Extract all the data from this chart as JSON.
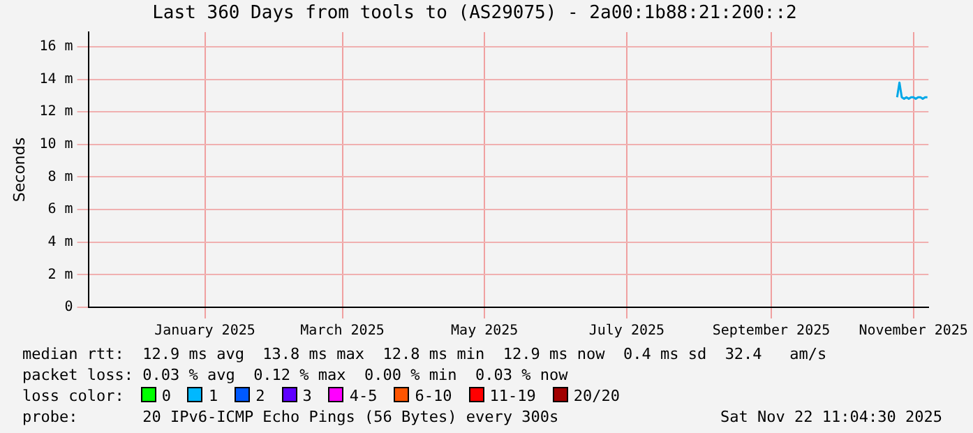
{
  "chart_data": {
    "type": "line",
    "title": "Last 360 Days from tools to (AS29075) - 2a00:1b88:21:200::2",
    "ylabel": "Seconds",
    "x": [
      "2025-11-09",
      "2025-11-10",
      "2025-11-11",
      "2025-11-12",
      "2025-11-13",
      "2025-11-14",
      "2025-11-15",
      "2025-11-16",
      "2025-11-17",
      "2025-11-18",
      "2025-11-19",
      "2025-11-20",
      "2025-11-21",
      "2025-11-22"
    ],
    "series": [
      {
        "color": "#00a8e8",
        "values": [
          12.9,
          13.8,
          12.9,
          12.8,
          12.9,
          12.8,
          12.9,
          12.9,
          12.8,
          12.9,
          12.9,
          12.8,
          12.9,
          12.9
        ]
      }
    ],
    "xlim": [
      "2024-11-27",
      "2025-11-22T11:04"
    ],
    "xticks": [
      {
        "value": "2025-01-16",
        "label": "January 2025"
      },
      {
        "value": "2025-03-16",
        "label": "March 2025"
      },
      {
        "value": "2025-05-16",
        "label": "May 2025"
      },
      {
        "value": "2025-07-16",
        "label": "July 2025"
      },
      {
        "value": "2025-09-16",
        "label": "September 2025"
      },
      {
        "value": "2025-11-16",
        "label": "November 2025"
      }
    ],
    "ylim": [
      0,
      16.9
    ],
    "yticks": [
      {
        "value": 0,
        "label": "0"
      },
      {
        "value": 2,
        "label": "2 m"
      },
      {
        "value": 4,
        "label": "4 m"
      },
      {
        "value": 6,
        "label": "6 m"
      },
      {
        "value": 8,
        "label": "8 m"
      },
      {
        "value": 10,
        "label": "10 m"
      },
      {
        "value": 12,
        "label": "12 m"
      },
      {
        "value": 14,
        "label": "14 m"
      },
      {
        "value": 16,
        "label": "16 m"
      }
    ],
    "grid": true,
    "marker": "none",
    "legend": false,
    "annotations": [
      "median rtt:  12.9 ms avg  13.8 ms max  12.8 ms min  12.9 ms now  0.4 ms sd  32.4   am/s",
      "packet loss: 0.03 % avg  0.12 % max  0.00 % min  0.03 % now",
      "loss color:",
      "0",
      "1",
      "2",
      "3",
      "4-5",
      "6-10",
      "11-19",
      "20/20",
      "probe:",
      "20 IPv6-ICMP Echo Pings (56 Bytes) every 300s",
      "Sat Nov 22 11:04:30 2025"
    ]
  }
}
